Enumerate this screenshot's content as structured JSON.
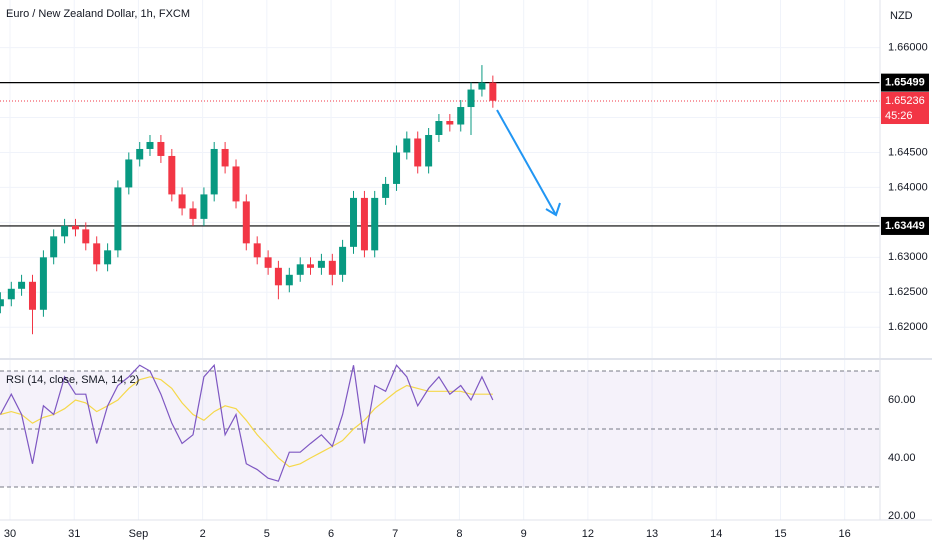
{
  "chart_data": {
    "type": "candlestick",
    "title": "Euro / New Zealand Dollar, 1h, FXCM",
    "currency": "NZD",
    "x": [
      -0.15,
      0.02,
      0.18,
      0.35,
      0.52,
      0.68,
      0.85,
      1.02,
      1.18,
      1.35,
      1.52,
      1.68,
      1.85,
      2.02,
      2.18,
      2.35,
      2.52,
      2.68,
      2.85,
      3.02,
      3.18,
      3.35,
      3.52,
      3.68,
      3.85,
      4.02,
      4.18,
      4.35,
      4.52,
      4.68,
      4.85,
      5.02,
      5.18,
      5.35,
      5.52,
      5.68,
      5.85,
      6.02,
      6.18,
      6.35,
      6.52,
      6.68,
      6.85,
      7.02,
      7.18,
      7.35,
      7.52
    ],
    "open": [
      1.623,
      1.624,
      1.6255,
      1.6265,
      1.6225,
      1.63,
      1.633,
      1.6345,
      1.634,
      1.632,
      1.629,
      1.631,
      1.64,
      1.644,
      1.6455,
      1.6465,
      1.6445,
      1.639,
      1.637,
      1.6355,
      1.639,
      1.6455,
      1.643,
      1.638,
      1.632,
      1.63,
      1.6285,
      1.626,
      1.6275,
      1.629,
      1.6285,
      1.6295,
      1.6275,
      1.6315,
      1.6385,
      1.631,
      1.6385,
      1.6405,
      1.645,
      1.647,
      1.643,
      1.6475,
      1.6495,
      1.649,
      1.6515,
      1.654,
      1.655
    ],
    "high": [
      1.625,
      1.6265,
      1.6275,
      1.6275,
      1.631,
      1.634,
      1.6355,
      1.6355,
      1.635,
      1.633,
      1.632,
      1.641,
      1.645,
      1.6465,
      1.6475,
      1.6475,
      1.6455,
      1.64,
      1.638,
      1.64,
      1.6465,
      1.6465,
      1.644,
      1.639,
      1.633,
      1.631,
      1.6295,
      1.6285,
      1.63,
      1.63,
      1.6305,
      1.6305,
      1.6325,
      1.6395,
      1.6395,
      1.6395,
      1.6415,
      1.646,
      1.648,
      1.648,
      1.6485,
      1.6505,
      1.6505,
      1.6525,
      1.655,
      1.6575,
      1.656
    ],
    "low": [
      1.622,
      1.623,
      1.6245,
      1.619,
      1.6215,
      1.629,
      1.632,
      1.633,
      1.631,
      1.628,
      1.628,
      1.63,
      1.639,
      1.643,
      1.6445,
      1.6435,
      1.638,
      1.636,
      1.6345,
      1.6345,
      1.638,
      1.642,
      1.637,
      1.631,
      1.629,
      1.6275,
      1.624,
      1.625,
      1.6265,
      1.6275,
      1.6275,
      1.626,
      1.6265,
      1.6305,
      1.63,
      1.63,
      1.6375,
      1.6395,
      1.644,
      1.642,
      1.642,
      1.6465,
      1.648,
      1.648,
      1.6475,
      1.653,
      1.6514
    ],
    "close": [
      1.624,
      1.6255,
      1.6265,
      1.6225,
      1.63,
      1.633,
      1.6345,
      1.634,
      1.632,
      1.629,
      1.631,
      1.64,
      1.644,
      1.6455,
      1.6465,
      1.6445,
      1.639,
      1.637,
      1.6355,
      1.639,
      1.6455,
      1.643,
      1.638,
      1.632,
      1.63,
      1.6285,
      1.626,
      1.6275,
      1.629,
      1.6285,
      1.6295,
      1.6275,
      1.6315,
      1.6385,
      1.631,
      1.6385,
      1.6405,
      1.645,
      1.647,
      1.643,
      1.6475,
      1.6495,
      1.649,
      1.6515,
      1.654,
      1.655,
      1.6524
    ],
    "up_color": "#089981",
    "down_color": "#f23645",
    "xlim": [
      -0.156,
      13.55
    ],
    "xticks": [
      {
        "value": 0,
        "label": "30"
      },
      {
        "value": 1,
        "label": "31"
      },
      {
        "value": 2,
        "label": "Sep"
      },
      {
        "value": 3,
        "label": "2"
      },
      {
        "value": 4,
        "label": "5"
      },
      {
        "value": 5,
        "label": "6"
      },
      {
        "value": 6,
        "label": "7"
      },
      {
        "value": 7,
        "label": "8"
      },
      {
        "value": 8,
        "label": "9"
      },
      {
        "value": 9,
        "label": "12"
      },
      {
        "value": 10,
        "label": "13"
      },
      {
        "value": 11,
        "label": "14"
      },
      {
        "value": 12,
        "label": "15"
      },
      {
        "value": 13,
        "label": "16"
      }
    ],
    "ylim": [
      1.6156,
      1.66681
    ],
    "yticks": [
      {
        "value": 1.62,
        "label": "1.62000"
      },
      {
        "value": 1.625,
        "label": "1.62500"
      },
      {
        "value": 1.63,
        "label": "1.63000"
      },
      {
        "value": 1.635,
        "label": "1.63500"
      },
      {
        "value": 1.64,
        "label": "1.64000"
      },
      {
        "value": 1.645,
        "label": "1.64500"
      },
      {
        "value": 1.65,
        "label": "1.65000"
      },
      {
        "value": 1.655,
        "label": "1.65500"
      },
      {
        "value": 1.66,
        "label": "1.66000"
      }
    ],
    "hlines": [
      1.65499,
      1.63449
    ],
    "last_price": 1.65236,
    "countdown": "45:26",
    "grid": true,
    "rsi": {
      "title": "RSI (14, close, SMA, 14, 2)",
      "values": [
        55,
        62,
        55,
        38,
        58,
        55,
        68,
        62,
        62,
        45,
        58,
        65,
        68,
        72,
        70,
        62,
        52,
        45,
        48,
        68,
        72,
        48,
        55,
        38,
        36,
        33,
        32,
        42,
        42,
        45,
        48,
        44,
        55,
        72,
        45,
        65,
        63,
        72,
        68,
        58,
        64,
        68,
        62,
        65,
        60,
        68,
        60
      ],
      "color": "#7e57c2",
      "sma": [
        55,
        56,
        55,
        52,
        54,
        55,
        57,
        60,
        59,
        56,
        58,
        60,
        64,
        67,
        68,
        67,
        64,
        59,
        55,
        53,
        56,
        58,
        57,
        53,
        48,
        44,
        40,
        37,
        38,
        40,
        42,
        44,
        46,
        50,
        53,
        57,
        60,
        63,
        65,
        64,
        63,
        63,
        63,
        63,
        62,
        62,
        62
      ],
      "sma_color": "#f5d84a",
      "levels": [
        30,
        50,
        70
      ],
      "ylim": [
        18.6,
        73.8
      ],
      "yticks": [
        {
          "value": 20,
          "label": "20.00"
        },
        {
          "value": 40,
          "label": "40.00"
        },
        {
          "value": 60,
          "label": "60.00"
        }
      ]
    }
  }
}
